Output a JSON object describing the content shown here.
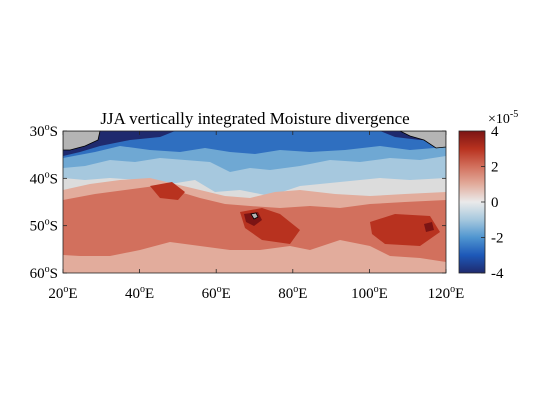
{
  "chart_data": {
    "type": "heatmap",
    "title": "JJA vertically integrated Moisture divergence",
    "xlabel": "",
    "ylabel": "",
    "x_ticks": [
      {
        "value": 20,
        "label": "20",
        "sup": "o",
        "suffix": "E"
      },
      {
        "value": 40,
        "label": "40",
        "sup": "o",
        "suffix": "E"
      },
      {
        "value": 60,
        "label": "60",
        "sup": "o",
        "suffix": "E"
      },
      {
        "value": 80,
        "label": "80",
        "sup": "o",
        "suffix": "E"
      },
      {
        "value": 100,
        "label": "100",
        "sup": "o",
        "suffix": "E"
      },
      {
        "value": 120,
        "label": "120",
        "sup": "o",
        "suffix": "E"
      }
    ],
    "y_ticks": [
      {
        "value": -30,
        "label": "30",
        "sup": "o",
        "suffix": "S"
      },
      {
        "value": -40,
        "label": "40",
        "sup": "o",
        "suffix": "S"
      },
      {
        "value": -50,
        "label": "50",
        "sup": "o",
        "suffix": "S"
      },
      {
        "value": -60,
        "label": "60",
        "sup": "o",
        "suffix": "S"
      }
    ],
    "xlim": [
      20,
      120
    ],
    "ylim": [
      -60,
      -30
    ],
    "colorbar": {
      "min": -4,
      "max": 4,
      "ticks": [
        "4",
        "2",
        "0",
        "-2",
        "-4"
      ],
      "multiplier_base": "×10",
      "multiplier_exp": "-5",
      "colors": [
        "#1f2a6e",
        "#1d58b8",
        "#4f95d0",
        "#a6c8de",
        "#eaeaea",
        "#e2ac9c",
        "#d2705d",
        "#b8321f",
        "#7b1414"
      ]
    },
    "land_color": "#b4b4b4"
  }
}
